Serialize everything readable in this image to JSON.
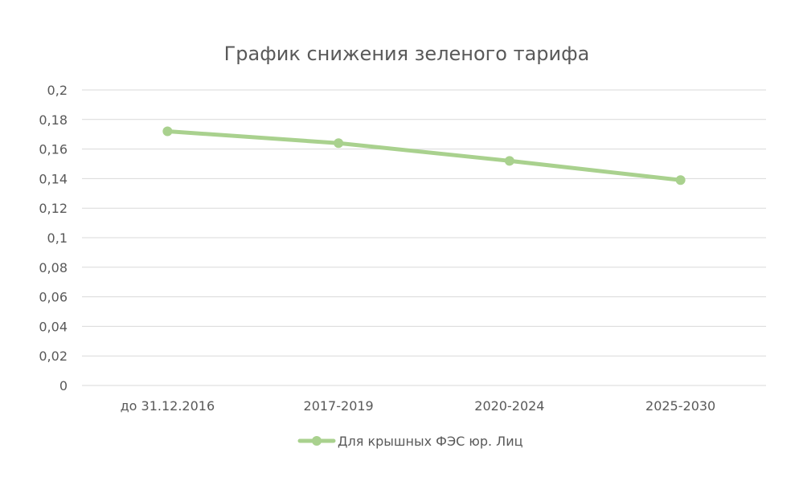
{
  "chart_data": {
    "type": "line",
    "title": "График снижения зеленого тарифа",
    "xlabel": "",
    "ylabel": "",
    "categories": [
      "до 31.12.2016",
      "2017-2019",
      "2020-2024",
      "2025-2030"
    ],
    "series": [
      {
        "name": "Для крышных ФЭС юр. Лиц",
        "values": [
          0.172,
          0.164,
          0.152,
          0.139
        ],
        "color": "#a9d18e"
      }
    ],
    "ylim": [
      0,
      0.2
    ],
    "yticks": [
      0,
      0.02,
      0.04,
      0.06,
      0.08,
      0.1,
      0.12,
      0.14,
      0.16,
      0.18,
      0.2
    ],
    "ytick_labels": [
      "0",
      "0,02",
      "0,04",
      "0,06",
      "0,08",
      "0,1",
      "0,12",
      "0,14",
      "0,16",
      "0,18",
      "0,2"
    ],
    "grid": true,
    "legend_position": "bottom",
    "gridline_color": "#d9d9d9",
    "text_color": "#595959"
  }
}
